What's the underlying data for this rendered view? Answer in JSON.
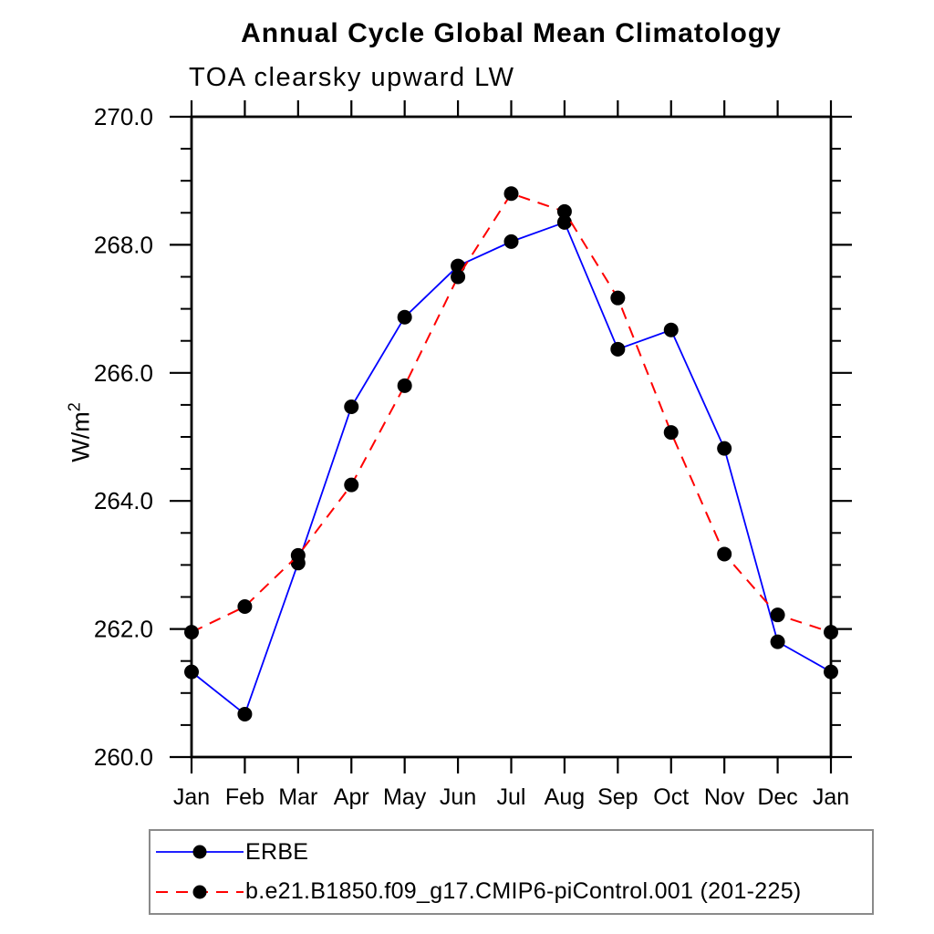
{
  "chart_data": {
    "type": "line",
    "title": "Annual Cycle Global Mean Climatology",
    "subtitle": "TOA clearsky upward LW",
    "ylabel_base": "W/m",
    "ylabel_sup": "2",
    "categories": [
      "Jan",
      "Feb",
      "Mar",
      "Apr",
      "May",
      "Jun",
      "Jul",
      "Aug",
      "Sep",
      "Oct",
      "Nov",
      "Dec",
      "Jan"
    ],
    "ylim": [
      260.0,
      270.0
    ],
    "ytick_major": [
      260.0,
      262.0,
      264.0,
      266.0,
      268.0,
      270.0
    ],
    "ytick_minor_step": 0.5,
    "grid": false,
    "legend_position": "bottom-left-box",
    "axis_color": "#000000",
    "marker_color": "#000000",
    "series": [
      {
        "name": "ERBE",
        "color": "#0000ff",
        "line_style": "solid",
        "marker": "filled-circle",
        "values": [
          261.33,
          260.67,
          263.03,
          265.47,
          266.87,
          267.67,
          268.05,
          268.35,
          266.37,
          266.67,
          264.82,
          261.8,
          261.33
        ]
      },
      {
        "name": "b.e21.B1850.f09_g17.CMIP6-piControl.001 (201-225)",
        "color": "#ff0000",
        "line_style": "dashed",
        "marker": "filled-circle",
        "values": [
          261.95,
          262.35,
          263.15,
          264.25,
          265.8,
          267.5,
          268.8,
          268.52,
          267.17,
          265.07,
          263.17,
          262.22,
          261.95
        ]
      }
    ]
  }
}
